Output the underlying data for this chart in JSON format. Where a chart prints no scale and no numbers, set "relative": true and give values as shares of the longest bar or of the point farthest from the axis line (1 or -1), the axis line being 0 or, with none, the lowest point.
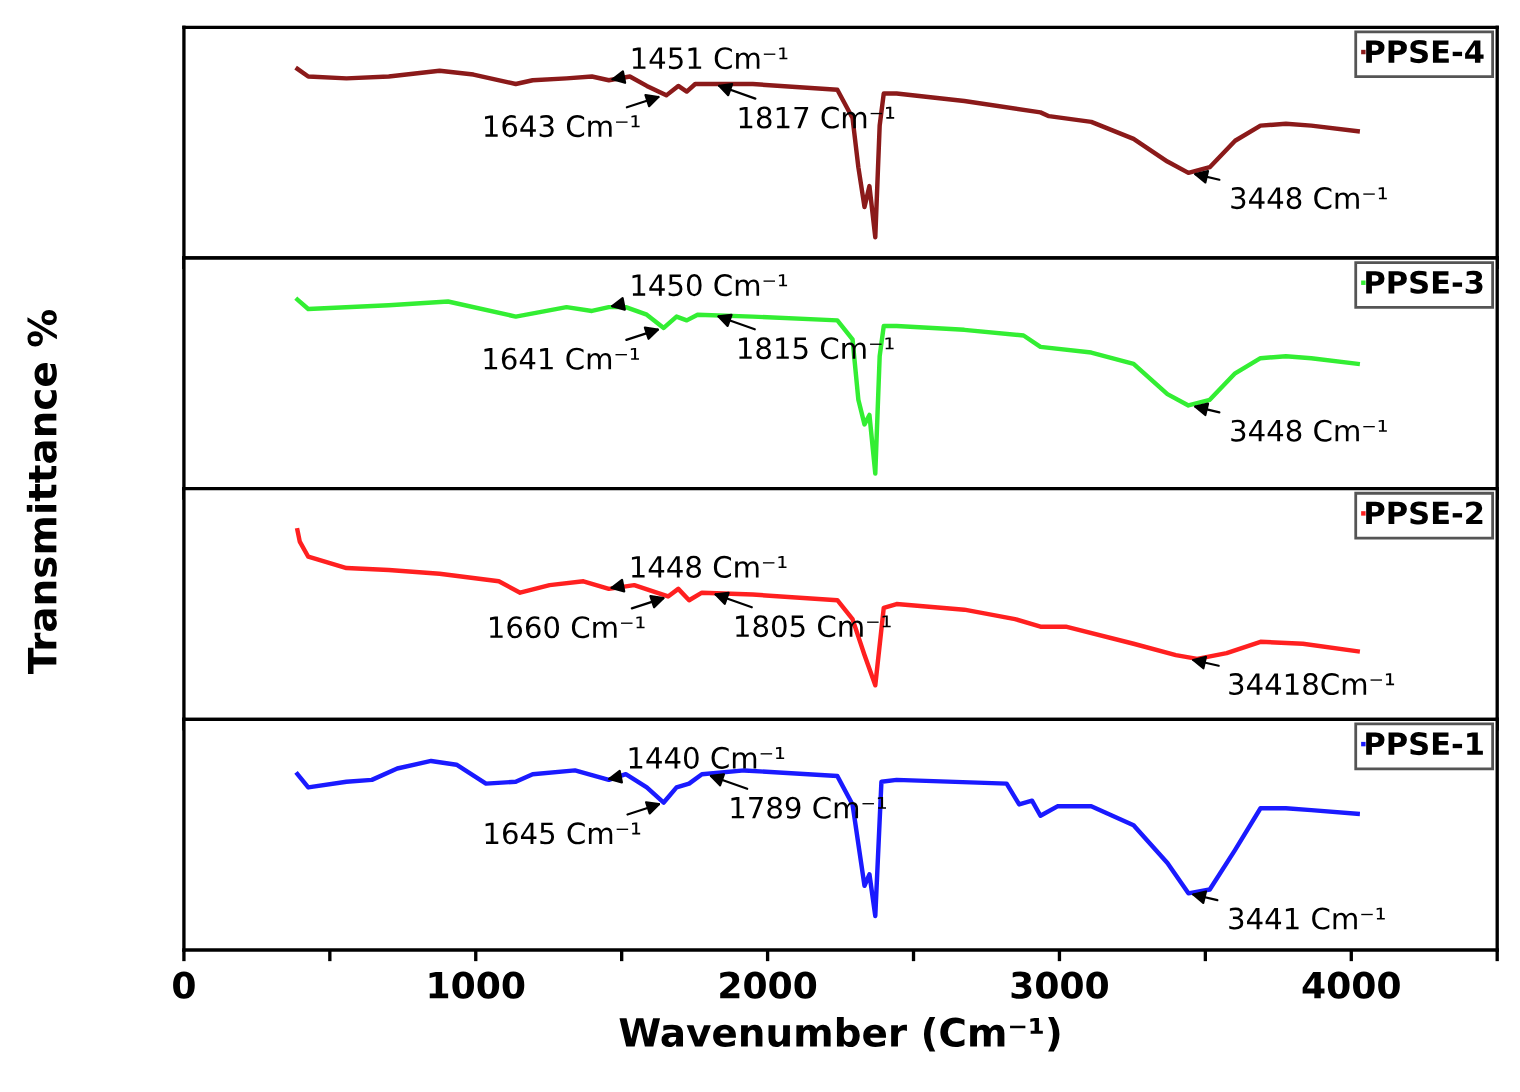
{
  "chart_data": [
    {
      "type": "line",
      "relative": true,
      "ylabel": "Transmittance %",
      "xlim": [
        0,
        4500
      ],
      "tick_labels": false,
      "grid": false,
      "legend": "top right",
      "series": [
        {
          "name": "PPSE-4",
          "color": "#8b1a1a",
          "x": [
            389,
            426,
            557,
            702,
            876,
            992,
            1137,
            1195,
            1311,
            1398,
            1456,
            1528,
            1586,
            1653,
            1694,
            1723,
            1752,
            1949,
            2239,
            2291,
            2311,
            2332,
            2349,
            2369,
            2384,
            2398,
            2442,
            2674,
            2935,
            2964,
            3109,
            3254,
            3370,
            3442,
            3515,
            3602,
            3689,
            3776,
            3863,
            4022
          ],
          "values": [
            1.0,
            0.96,
            0.95,
            0.96,
            0.99,
            0.97,
            0.92,
            0.94,
            0.95,
            0.96,
            0.94,
            0.96,
            0.91,
            0.86,
            0.91,
            0.88,
            0.92,
            0.92,
            0.89,
            0.74,
            0.48,
            0.27,
            0.38,
            0.11,
            0.7,
            0.87,
            0.87,
            0.83,
            0.77,
            0.75,
            0.72,
            0.63,
            0.51,
            0.45,
            0.48,
            0.62,
            0.7,
            0.71,
            0.7,
            0.67
          ]
        }
      ],
      "annotations": [
        {
          "text": "1451 Cm⁻¹",
          "x": 1451,
          "y": 0.94
        },
        {
          "text": "1643 Cm⁻¹",
          "x": 1643,
          "y": 0.86
        },
        {
          "text": "1817 Cm⁻¹",
          "x": 1817,
          "y": 0.92
        },
        {
          "text": "3448 Cm⁻¹",
          "x": 3448,
          "y": 0.45
        }
      ]
    },
    {
      "type": "line",
      "relative": true,
      "xlim": [
        0,
        4500
      ],
      "tick_labels": false,
      "grid": false,
      "legend": "top right",
      "series": [
        {
          "name": "PPSE-3",
          "color": "#33ee33",
          "x": [
            389,
            426,
            702,
            905,
            1137,
            1311,
            1398,
            1456,
            1514,
            1586,
            1644,
            1688,
            1723,
            1760,
            1949,
            2239,
            2291,
            2311,
            2332,
            2349,
            2369,
            2384,
            2398,
            2442,
            2674,
            2877,
            2935,
            3109,
            3254,
            3370,
            3442,
            3515,
            3602,
            3689,
            3776,
            3863,
            4022
          ],
          "values": [
            1.0,
            0.95,
            0.97,
            0.99,
            0.91,
            0.96,
            0.94,
            0.96,
            0.96,
            0.92,
            0.85,
            0.91,
            0.89,
            0.92,
            0.91,
            0.89,
            0.79,
            0.47,
            0.34,
            0.39,
            0.08,
            0.7,
            0.86,
            0.86,
            0.84,
            0.81,
            0.75,
            0.72,
            0.66,
            0.5,
            0.44,
            0.47,
            0.61,
            0.69,
            0.7,
            0.69,
            0.66
          ]
        }
      ],
      "annotations": [
        {
          "text": "1450 Cm⁻¹",
          "x": 1450,
          "y": 0.96
        },
        {
          "text": "1641 Cm⁻¹",
          "x": 1641,
          "y": 0.85
        },
        {
          "text": "1815 Cm⁻¹",
          "x": 1815,
          "y": 0.92
        },
        {
          "text": "3448 Cm⁻¹",
          "x": 3448,
          "y": 0.44
        }
      ]
    },
    {
      "type": "line",
      "relative": true,
      "xlim": [
        0,
        4500
      ],
      "tick_labels": false,
      "grid": false,
      "legend": "top right",
      "series": [
        {
          "name": "PPSE-2",
          "color": "#ff2020",
          "x": [
            389,
            397,
            426,
            557,
            702,
            876,
            1079,
            1152,
            1253,
            1369,
            1456,
            1543,
            1659,
            1694,
            1731,
            1775,
            1949,
            2239,
            2291,
            2332,
            2369,
            2398,
            2442,
            2674,
            2848,
            2935,
            3022,
            3254,
            3399,
            3472,
            3573,
            3689,
            3834,
            4022
          ],
          "values": [
            1.0,
            0.94,
            0.86,
            0.8,
            0.79,
            0.77,
            0.73,
            0.67,
            0.71,
            0.73,
            0.69,
            0.71,
            0.65,
            0.69,
            0.63,
            0.67,
            0.66,
            0.63,
            0.53,
            0.34,
            0.18,
            0.59,
            0.61,
            0.58,
            0.53,
            0.49,
            0.49,
            0.4,
            0.34,
            0.32,
            0.35,
            0.41,
            0.4,
            0.36
          ]
        }
      ],
      "annotations": [
        {
          "text": "1448 Cm⁻¹",
          "x": 1448,
          "y": 0.69
        },
        {
          "text": "1660 Cm⁻¹",
          "x": 1660,
          "y": 0.65
        },
        {
          "text": "1805 Cm⁻¹",
          "x": 1805,
          "y": 0.67
        },
        {
          "text": "34418Cm⁻¹",
          "x": 3441,
          "y": 0.32
        }
      ]
    },
    {
      "type": "line",
      "relative": true,
      "xlabel": "Wavenumber (Cm⁻¹)",
      "xlim": [
        0,
        4500
      ],
      "xticks": [
        0,
        {
          "value": 500,
          "label": null
        },
        1000,
        {
          "value": 1500,
          "label": null
        },
        2000,
        {
          "value": 2500,
          "label": null
        },
        3000,
        {
          "value": 3500,
          "label": null
        },
        4000,
        {
          "value": 4500,
          "label": null
        }
      ],
      "tick_labels": "x",
      "grid": false,
      "legend": "top right",
      "series": [
        {
          "name": "PPSE-1",
          "color": "#1a1aff",
          "x": [
            389,
            426,
            557,
            644,
            731,
            847,
            934,
            1035,
            1137,
            1195,
            1340,
            1456,
            1514,
            1586,
            1644,
            1688,
            1731,
            1775,
            1920,
            2239,
            2291,
            2332,
            2349,
            2369,
            2390,
            2442,
            2819,
            2862,
            2906,
            2935,
            2993,
            3109,
            3254,
            3370,
            3442,
            3515,
            3602,
            3689,
            3776,
            3863,
            4022
          ],
          "values": [
            0.93,
            0.86,
            0.89,
            0.9,
            0.96,
            1.0,
            0.98,
            0.88,
            0.89,
            0.93,
            0.95,
            0.9,
            0.93,
            0.86,
            0.78,
            0.86,
            0.88,
            0.93,
            0.95,
            0.92,
            0.77,
            0.34,
            0.4,
            0.18,
            0.89,
            0.9,
            0.88,
            0.77,
            0.79,
            0.71,
            0.76,
            0.76,
            0.66,
            0.46,
            0.3,
            0.32,
            0.53,
            0.75,
            0.75,
            0.74,
            0.72
          ]
        }
      ],
      "annotations": [
        {
          "text": "1440 Cm⁻¹",
          "x": 1440,
          "y": 0.9
        },
        {
          "text": "1645 Cm⁻¹",
          "x": 1645,
          "y": 0.78
        },
        {
          "text": "1789 Cm⁻¹",
          "x": 1789,
          "y": 0.93
        },
        {
          "text": "3441 Cm⁻¹",
          "x": 3441,
          "y": 0.3
        }
      ]
    }
  ]
}
